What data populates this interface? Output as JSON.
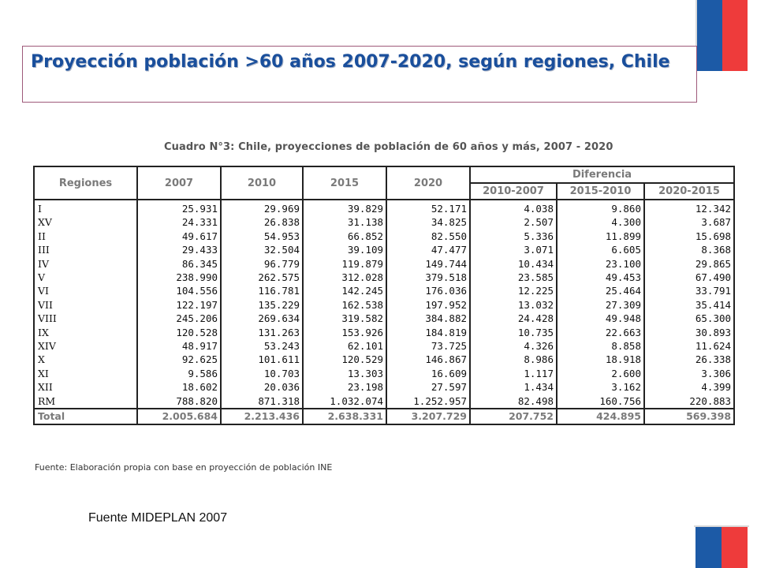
{
  "slide": {
    "title": "Proyección población >60 años 2007-2020,  según regiones, Chile",
    "footer_source": "Fuente MIDEPLAN 2007",
    "colors": {
      "title": "#1a4f9c",
      "flag_blue": "#1c5aa6",
      "flag_red": "#ee3b3b",
      "title_border": "#9e5a7a"
    }
  },
  "table": {
    "caption": "Cuadro N°3: Chile, proyecciones de población de 60 años y más, 2007 - 2020",
    "headers": {
      "regiones": "Regiones",
      "years": [
        "2007",
        "2010",
        "2015",
        "2020"
      ],
      "diferencia": "Diferencia",
      "diff_cols": [
        "2010-2007",
        "2015-2010",
        "2020-2015"
      ]
    },
    "rows": [
      {
        "region": "I",
        "values": [
          "25.931",
          "29.969",
          "39.829",
          "52.171",
          "4.038",
          "9.860",
          "12.342"
        ]
      },
      {
        "region": "XV",
        "values": [
          "24.331",
          "26.838",
          "31.138",
          "34.825",
          "2.507",
          "4.300",
          "3.687"
        ]
      },
      {
        "region": "II",
        "values": [
          "49.617",
          "54.953",
          "66.852",
          "82.550",
          "5.336",
          "11.899",
          "15.698"
        ]
      },
      {
        "region": "III",
        "values": [
          "29.433",
          "32.504",
          "39.109",
          "47.477",
          "3.071",
          "6.605",
          "8.368"
        ]
      },
      {
        "region": "IV",
        "values": [
          "86.345",
          "96.779",
          "119.879",
          "149.744",
          "10.434",
          "23.100",
          "29.865"
        ]
      },
      {
        "region": "V",
        "values": [
          "238.990",
          "262.575",
          "312.028",
          "379.518",
          "23.585",
          "49.453",
          "67.490"
        ]
      },
      {
        "region": "VI",
        "values": [
          "104.556",
          "116.781",
          "142.245",
          "176.036",
          "12.225",
          "25.464",
          "33.791"
        ]
      },
      {
        "region": "VII",
        "values": [
          "122.197",
          "135.229",
          "162.538",
          "197.952",
          "13.032",
          "27.309",
          "35.414"
        ]
      },
      {
        "region": "VIII",
        "values": [
          "245.206",
          "269.634",
          "319.582",
          "384.882",
          "24.428",
          "49.948",
          "65.300"
        ]
      },
      {
        "region": "IX",
        "values": [
          "120.528",
          "131.263",
          "153.926",
          "184.819",
          "10.735",
          "22.663",
          "30.893"
        ]
      },
      {
        "region": "XIV",
        "values": [
          "48.917",
          "53.243",
          "62.101",
          "73.725",
          "4.326",
          "8.858",
          "11.624"
        ]
      },
      {
        "region": "X",
        "values": [
          "92.625",
          "101.611",
          "120.529",
          "146.867",
          "8.986",
          "18.918",
          "26.338"
        ]
      },
      {
        "region": "XI",
        "values": [
          "9.586",
          "10.703",
          "13.303",
          "16.609",
          "1.117",
          "2.600",
          "3.306"
        ]
      },
      {
        "region": "XII",
        "values": [
          "18.602",
          "20.036",
          "23.198",
          "27.597",
          "1.434",
          "3.162",
          "4.399"
        ]
      },
      {
        "region": "RM",
        "values": [
          "788.820",
          "871.318",
          "1.032.074",
          "1.252.957",
          "82.498",
          "160.756",
          "220.883"
        ]
      }
    ],
    "total": {
      "region": "Total",
      "values": [
        "2.005.684",
        "2.213.436",
        "2.638.331",
        "3.207.729",
        "207.752",
        "424.895",
        "569.398"
      ]
    },
    "source": "Fuente: Elaboración propia con base en proyección de población INE"
  }
}
